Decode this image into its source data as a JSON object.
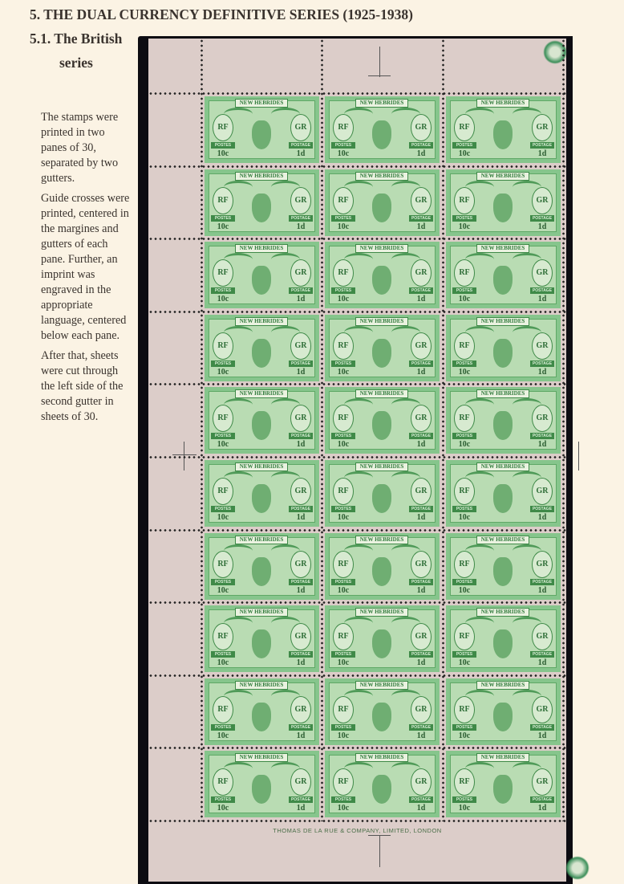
{
  "heading": "5. THE DUAL CURRENCY DEFINITIVE SERIES (1925-1938)",
  "subheading_line1": "5.1. The British",
  "subheading_line2": "series",
  "paragraphs": [
    "The stamps were printed in two panes of 30, separated by two gutters.",
    "Guide crosses were printed, centered in the margines and gutters of each pane. Further, an imprint was engraved in the appropriate language, centered below each pane.",
    "After that, sheets were cut through the left side of the second gutter in sheets of 30."
  ],
  "sheet": {
    "rows": 10,
    "columns": 3,
    "imprint": "THOMAS DE LA RUE & COMPANY, LIMITED, LONDON",
    "stamp": {
      "country": "NEW HEBRIDES",
      "left_monogram": "RF",
      "right_monogram": "GR",
      "left_label": "POSTES",
      "right_label": "POSTAGE",
      "left_value": "10c",
      "right_value": "1d",
      "color": "#86c58c"
    }
  }
}
